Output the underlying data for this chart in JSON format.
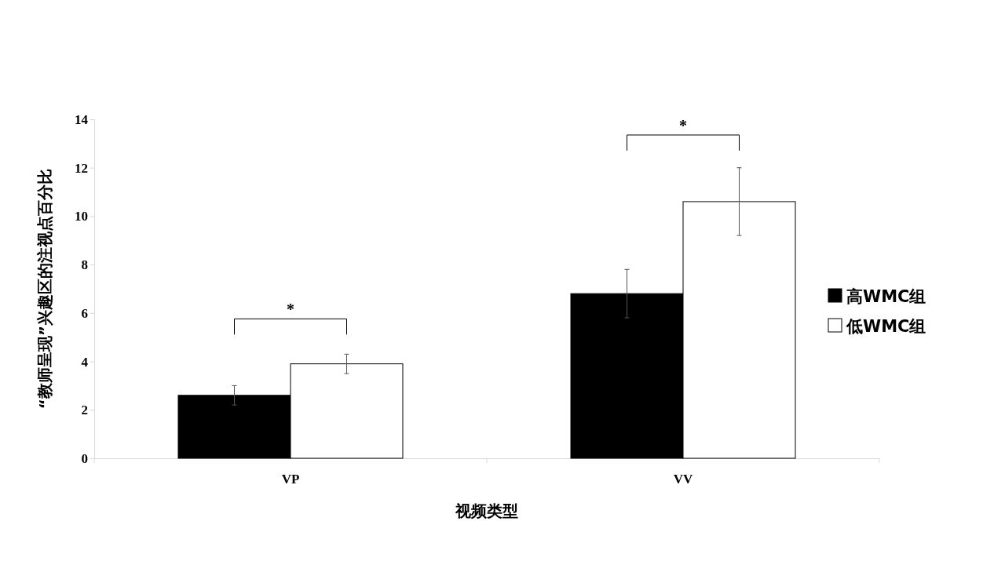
{
  "chart_data": {
    "type": "bar",
    "xlabel": "视频类型",
    "ylabel": "“教师呈现”兴趣区的注视点百分比",
    "categories": [
      "VP",
      "VV"
    ],
    "series": [
      {
        "name": "高WMC组",
        "color": "#000000",
        "values": [
          2.6,
          6.8
        ],
        "errors": [
          0.4,
          1.0
        ]
      },
      {
        "name": "低WMC组",
        "color": "#ffffff",
        "values": [
          3.9,
          10.6
        ],
        "errors": [
          0.4,
          1.4
        ]
      }
    ],
    "ylim": [
      0,
      14
    ],
    "yticks": [
      0,
      2,
      4,
      6,
      8,
      10,
      12,
      14
    ],
    "grid": false,
    "legend": "right",
    "annotations": [
      "*",
      "*"
    ]
  }
}
